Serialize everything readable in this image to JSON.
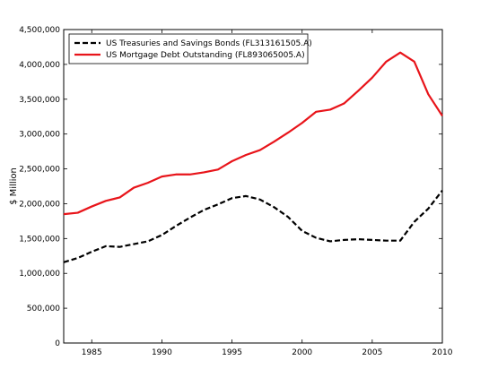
{
  "chart_data": {
    "type": "line",
    "title": "",
    "xlabel": "",
    "ylabel": "$ Million",
    "xlim": [
      1983,
      2010
    ],
    "ylim": [
      0,
      4500000
    ],
    "x_ticks": [
      1985,
      1990,
      1995,
      2000,
      2005,
      2010
    ],
    "y_ticks": [
      0,
      500000,
      1000000,
      1500000,
      2000000,
      2500000,
      3000000,
      3500000,
      4000000,
      4500000
    ],
    "x_tick_labels": [
      "1985",
      "1990",
      "1995",
      "2000",
      "2005",
      "2010"
    ],
    "y_tick_labels": [
      "0",
      "500,000",
      "1,000,000",
      "1,500,000",
      "2,000,000",
      "2,500,000",
      "3,000,000",
      "3,500,000",
      "4,000,000",
      "4,500,000"
    ],
    "grid": false,
    "legend_position": "top-left",
    "x": [
      1983,
      1984,
      1985,
      1986,
      1987,
      1988,
      1989,
      1990,
      1991,
      1992,
      1993,
      1994,
      1995,
      1996,
      1997,
      1998,
      1999,
      2000,
      2001,
      2002,
      2003,
      2004,
      2005,
      2006,
      2007,
      2008,
      2009,
      2010
    ],
    "series": [
      {
        "name": "US Treasuries and Savings Bonds (FL313161505.A)",
        "color": "#000000",
        "dash": "dashed",
        "values": [
          1160000,
          1220000,
          1310000,
          1390000,
          1380000,
          1420000,
          1460000,
          1550000,
          1680000,
          1800000,
          1910000,
          1990000,
          2080000,
          2110000,
          2060000,
          1950000,
          1810000,
          1610000,
          1510000,
          1460000,
          1480000,
          1490000,
          1480000,
          1470000,
          1470000,
          1740000,
          1930000,
          2190000
        ]
      },
      {
        "name": "US Mortgage Debt Outstanding (FL893065005.A)",
        "color": "#e8141a",
        "dash": "solid",
        "values": [
          1850000,
          1870000,
          1960000,
          2040000,
          2090000,
          2230000,
          2300000,
          2390000,
          2420000,
          2420000,
          2450000,
          2490000,
          2610000,
          2700000,
          2770000,
          2890000,
          3020000,
          3160000,
          3320000,
          3350000,
          3440000,
          3620000,
          3810000,
          4040000,
          4170000,
          4040000,
          3570000,
          3260000
        ]
      }
    ]
  }
}
